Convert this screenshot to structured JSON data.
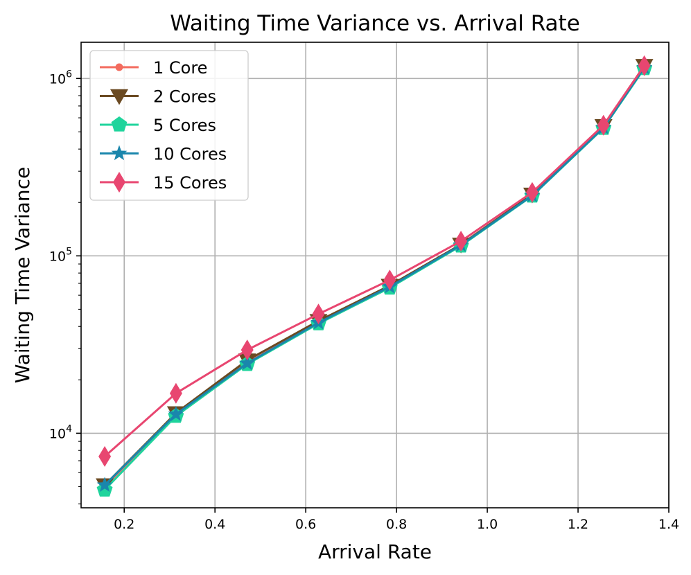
{
  "chart_data": {
    "type": "line",
    "title": "Waiting Time Variance vs. Arrival Rate",
    "xlabel": "Arrival Rate",
    "ylabel": "Waiting Time Variance",
    "yscale": "log",
    "xlim": [
      0.105,
      1.4
    ],
    "ylim": [
      3800,
      1600000
    ],
    "grid": true,
    "legend_position": "top-left",
    "x_ticks": [
      0.2,
      0.4,
      0.6,
      0.8,
      1.0,
      1.2,
      1.4
    ],
    "x_tick_labels": [
      "0.2",
      "0.4",
      "0.6",
      "0.8",
      "1.0",
      "1.2",
      "1.4"
    ],
    "y_major_ticks": [
      {
        "value": 10000,
        "base": "10",
        "exp": "4"
      },
      {
        "value": 100000,
        "base": "10",
        "exp": "5"
      },
      {
        "value": 1000000,
        "base": "10",
        "exp": "6"
      }
    ],
    "x": [
      0.157,
      0.314,
      0.471,
      0.628,
      0.785,
      0.942,
      1.099,
      1.256,
      1.346
    ],
    "series": [
      {
        "name": "1 Core",
        "color": "#f36b5e",
        "marker": "circle",
        "values": [
          5000,
          12800,
          25000,
          42000,
          67000,
          115000,
          220000,
          530000,
          1150000
        ]
      },
      {
        "name": "2 Cores",
        "color": "#6b4a22",
        "marker": "triangle-down",
        "values": [
          5100,
          13000,
          25800,
          43000,
          68000,
          116000,
          222000,
          540000,
          1180000
        ]
      },
      {
        "name": "5 Cores",
        "color": "#1fd49c",
        "marker": "pentagon",
        "values": [
          4800,
          12500,
          24500,
          41500,
          66000,
          114000,
          218000,
          525000,
          1140000
        ]
      },
      {
        "name": "10 Cores",
        "color": "#1a86ac",
        "marker": "star",
        "values": [
          5100,
          12800,
          24800,
          42000,
          67000,
          115000,
          219000,
          528000,
          1150000
        ]
      },
      {
        "name": "15 Cores",
        "color": "#e84670",
        "marker": "diamond",
        "values": [
          7400,
          16800,
          29500,
          47000,
          73000,
          121000,
          228000,
          545000,
          1180000
        ]
      }
    ]
  }
}
